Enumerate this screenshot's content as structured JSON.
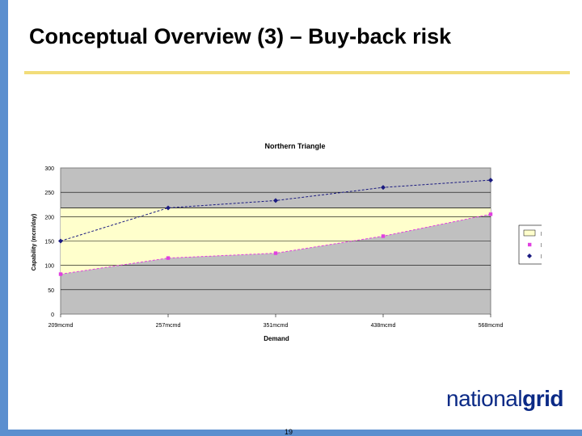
{
  "slide": {
    "title": "Conceptual Overview (3) – Buy-back risk",
    "page_number": "19",
    "logo": {
      "part1": "national",
      "part2": "grid"
    }
  },
  "colors": {
    "accent_bar": "#5b8fcf",
    "title_rule": "#f2dd7a",
    "plot_bg": "#c0c0c0",
    "band_fill": "#ffffcc",
    "min_series": "#e040e0",
    "max_series": "#1a1a80",
    "logo": "#0b2a86"
  },
  "chart_data": {
    "type": "line",
    "title": "Northern Triangle",
    "xlabel": "Demand",
    "ylabel": "Capability (mcm/day)",
    "categories": [
      "209mcmd",
      "257mcmd",
      "351mcmd",
      "438mcmd",
      "568mcmd"
    ],
    "ylim": [
      0,
      300
    ],
    "yticks": [
      0,
      50,
      100,
      150,
      200,
      250,
      300
    ],
    "grid": true,
    "legend_position": "right",
    "legend": [
      "Buy-back",
      "Min",
      "Max"
    ],
    "series": [
      {
        "name": "Min",
        "values": [
          82,
          115,
          125,
          160,
          205
        ],
        "marker": "square"
      },
      {
        "name": "Max",
        "values": [
          150,
          218,
          233,
          260,
          275
        ],
        "marker": "diamond"
      }
    ],
    "bands": [
      {
        "name": "Buy-back",
        "lower": "Min",
        "upper": 218
      }
    ]
  }
}
